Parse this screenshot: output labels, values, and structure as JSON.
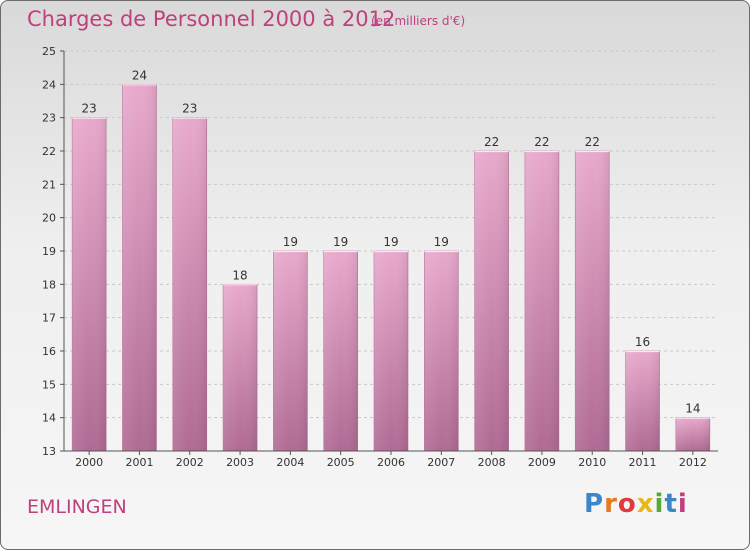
{
  "header": {
    "title": "Charges de Personnel 2000 à 2012",
    "subtitle": "(en milliers d'€)"
  },
  "footer": {
    "place": "EMLINGEN",
    "logo_letters": [
      "P",
      "r",
      "o",
      "x",
      "i",
      "t",
      "i"
    ],
    "logo_colors": [
      "#3a86c8",
      "#e67a1f",
      "#e03a3a",
      "#e6b81f",
      "#59a83a",
      "#3a86c8",
      "#c0407d"
    ]
  },
  "chart_data": {
    "type": "bar",
    "categories": [
      "2000",
      "2001",
      "2002",
      "2003",
      "2004",
      "2005",
      "2006",
      "2007",
      "2008",
      "2009",
      "2010",
      "2011",
      "2012"
    ],
    "values": [
      23,
      24,
      23,
      18,
      19,
      19,
      19,
      19,
      22,
      22,
      22,
      16,
      14
    ],
    "ylim": [
      13,
      25
    ],
    "yticks": [
      13,
      14,
      15,
      16,
      17,
      18,
      19,
      20,
      21,
      22,
      23,
      24,
      25
    ],
    "grid": true,
    "bar_color": "#d98fb8"
  }
}
